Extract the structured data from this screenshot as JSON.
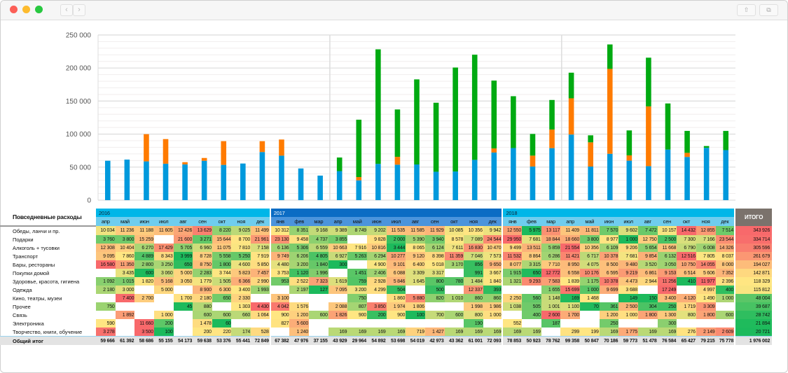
{
  "window": {
    "controls": [
      "close",
      "minimize",
      "zoom"
    ],
    "nav": {
      "back_icon": "chevron-left-icon",
      "forward_icon": "chevron-right-icon",
      "back": "‹",
      "forward": "›"
    },
    "toolbar": {
      "share_icon": "share-icon",
      "tabs_icon": "tabs-icon",
      "share": "⇧",
      "tabs": "⧉"
    }
  },
  "colors": {
    "blue": "#0099dc",
    "orange": "#ff7b00",
    "green": "#00aa11",
    "year_light": "#00b6e8",
    "month_light": "#6fcdee",
    "year_dark": "#0b6cc4",
    "month_dark": "#4b94dc",
    "heat_low": "#1cba5c",
    "heat_mid": "#ffe682",
    "heat_high": "#f8696b"
  },
  "chart_data": {
    "type": "bar",
    "stacked": true,
    "title": "",
    "xlabel": "",
    "ylabel": "",
    "ylim": [
      0,
      250000
    ],
    "yticks": [
      "0",
      "50 000",
      "100 000",
      "150 000",
      "200 000",
      "250 000"
    ],
    "ytick_values": [
      0,
      50000,
      100000,
      150000,
      200000,
      250000
    ],
    "grid": true,
    "categories": [
      "апр 2016",
      "май 2016",
      "июн 2016",
      "июл 2016",
      "авг 2016",
      "сен 2016",
      "окт 2016",
      "ноя 2016",
      "дек 2016",
      "янв 2017",
      "фев 2017",
      "мар 2017",
      "апр 2017",
      "май 2017",
      "июн 2017",
      "июл 2017",
      "авг 2017",
      "сен 2017",
      "окт 2017",
      "ноя 2017",
      "дек 2017",
      "янв 2018",
      "фев 2018",
      "мар 2018",
      "апр 2018",
      "май 2018",
      "июн 2018",
      "июл 2018",
      "авг 2018",
      "сен 2018",
      "окт 2018",
      "ноя 2018",
      "дек 2018"
    ],
    "series": [
      {
        "name": "blue",
        "values": [
          59666,
          61392,
          58686,
          55155,
          54173,
          59638,
          53376,
          55441,
          72849,
          67382,
          47976,
          37155,
          43929,
          29964,
          54892,
          53698,
          54019,
          42973,
          43362,
          61001,
          72093,
          78853,
          50923,
          78762,
          99358,
          50847,
          70186,
          59773,
          51478,
          76584,
          65427,
          79215,
          75778
        ]
      },
      {
        "name": "orange",
        "values": [
          0,
          0,
          41200,
          37300,
          3300,
          4200,
          35900,
          0,
          16400,
          24400,
          0,
          0,
          0,
          5000,
          0,
          11900,
          0,
          0,
          0,
          0,
          6200,
          0,
          16500,
          28100,
          54800,
          36700,
          128500,
          8000,
          90400,
          0,
          6200,
          0,
          0
        ]
      },
      {
        "name": "green",
        "values": [
          0,
          0,
          0,
          0,
          0,
          0,
          0,
          0,
          0,
          0,
          0,
          0,
          20600,
          86800,
          173400,
          71700,
          128800,
          104500,
          157400,
          159200,
          102700,
          78500,
          32800,
          44800,
          38800,
          10600,
          37000,
          37800,
          73800,
          69800,
          33200,
          2700,
          29000
        ]
      }
    ]
  },
  "table": {
    "title": "Повседневные расходы",
    "total_header": "ИТОГО",
    "years": [
      {
        "label": "2016",
        "span": 9,
        "dark": false
      },
      {
        "label": "2017",
        "span": 12,
        "dark": true
      },
      {
        "label": "2018",
        "span": 12,
        "dark": false
      }
    ],
    "months": [
      "апр",
      "май",
      "июн",
      "июл",
      "авг",
      "сен",
      "окт",
      "ноя",
      "дек",
      "янв",
      "фев",
      "мар",
      "апр",
      "май",
      "июн",
      "июл",
      "авг",
      "сен",
      "окт",
      "ноя",
      "дек",
      "янв",
      "фев",
      "мар",
      "апр",
      "май",
      "июн",
      "июл",
      "авг",
      "сен",
      "окт",
      "ноя",
      "дек"
    ],
    "rows": [
      {
        "label": "Обеды, ланчи и пр.",
        "total": 343926,
        "values": [
          10034,
          11236,
          11188,
          11605,
          12426,
          13629,
          8220,
          9025,
          11499,
          10312,
          8351,
          9168,
          9389,
          8749,
          9202,
          11535,
          11585,
          11929,
          10085,
          10356,
          9942,
          12550,
          5975,
          13117,
          11409,
          11811,
          7570,
          9602,
          7472,
          10157,
          14432,
          12855,
          7514
        ]
      },
      {
        "label": "Подарки",
        "total": 334714,
        "values": [
          3760,
          3800,
          15259,
          null,
          21600,
          3271,
          15644,
          8700,
          21961,
          23130,
          9458,
          4737,
          3855,
          null,
          9828,
          2000,
          5390,
          3940,
          8578,
          7089,
          24544,
          29950,
          7681,
          18844,
          18660,
          3800,
          8977,
          1000,
          12750,
          2500,
          7300,
          7166,
          23544
        ]
      },
      {
        "label": "Алкоголь + тусовки",
        "total": 305596,
        "values": [
          12308,
          10404,
          6270,
          17429,
          5705,
          6960,
          11075,
          7810,
          7158,
          6136,
          5306,
          6559,
          10663,
          7916,
          10816,
          3444,
          8065,
          6124,
          7611,
          16830,
          10470,
          9499,
          13511,
          5859,
          21554,
          10356,
          6109,
          9206,
          5654,
          11668,
          6790,
          6008,
          14326
        ]
      },
      {
        "label": "Транспорт",
        "total": 261679,
        "values": [
          9095,
          7860,
          4889,
          8343,
          3999,
          8728,
          5558,
          5250,
          7919,
          9749,
          6206,
          4805,
          6927,
          5263,
          6294,
          10277,
          9120,
          8398,
          11359,
          7046,
          7573,
          11532,
          8864,
          6286,
          11421,
          6717,
          10378,
          7681,
          9854,
          6132,
          12516,
          7805,
          8037
        ]
      },
      {
        "label": "Бары, рестораны",
        "total": 194027,
        "values": [
          16580,
          11350,
          2800,
          3250,
          650,
          8750,
          1800,
          4600,
          5850,
          4480,
          3200,
          1840,
          300,
          null,
          4900,
          9101,
          6400,
          5018,
          3170,
          856,
          9650,
          8077,
          3315,
          7710,
          8950,
          4075,
          8500,
          9480,
          3520,
          3050,
          10750,
          14055,
          8000
        ]
      },
      {
        "label": "Покупки домой",
        "total": 142871,
        "values": [
          null,
          3435,
          600,
          3060,
          5000,
          2283,
          3744,
          5823,
          7457,
          3753,
          1120,
          1996,
          null,
          1451,
          2406,
          6088,
          3309,
          3317,
          null,
          991,
          3667,
          1915,
          650,
          12772,
          6558,
          10176,
          6595,
          9219,
          6861,
          9153,
          6514,
          5606,
          7352
        ]
      },
      {
        "label": "Здоровье, красота, гигиена",
        "total": 118329,
        "values": [
          1092,
          1015,
          1820,
          5168,
          3050,
          1779,
          1505,
          6366,
          2990,
          953,
          2522,
          7323,
          1619,
          759,
          2928,
          5846,
          1645,
          800,
          780,
          1484,
          1840,
          1321,
          9293,
          7583,
          1839,
          1175,
          10378,
          4473,
          2944,
          11256,
          410,
          11977,
          2396
        ]
      },
      {
        "label": "Одежда",
        "total": 115812,
        "values": [
          2180,
          3000,
          null,
          5000,
          null,
          8900,
          6300,
          3400,
          1993,
          null,
          2197,
          127,
          7095,
          3200,
          4299,
          504,
          null,
          500,
          null,
          12337,
          393,
          null,
          null,
          1655,
          15699,
          1000,
          9699,
          3688,
          null,
          17249,
          null,
          4997,
          400
        ]
      },
      {
        "label": "Кино, театры, музеи",
        "total": 48004,
        "values": [
          null,
          7400,
          2700,
          null,
          1700,
          2180,
          650,
          2330,
          null,
          3100,
          null,
          null,
          null,
          750,
          null,
          1860,
          5880,
          820,
          1010,
          860,
          860,
          2250,
          560,
          1148,
          169,
          1468,
          null,
          149,
          150,
          3400,
          4120,
          1490,
          1000
        ]
      },
      {
        "label": "Прочее",
        "total": 39687,
        "values": [
          750,
          null,
          null,
          null,
          45,
          880,
          null,
          1303,
          4430,
          4042,
          1576,
          null,
          2088,
          807,
          3850,
          1974,
          1806,
          null,
          null,
          1998,
          1986,
          1038,
          505,
          1001,
          1100,
          70,
          361,
          2500,
          304,
          250,
          1719,
          3309,
          null
        ]
      },
      {
        "label": "Связь",
        "total": 28742,
        "values": [
          null,
          1892,
          null,
          1000,
          null,
          600,
          600,
          660,
          1064,
          900,
          1200,
          600,
          1826,
          900,
          200,
          900,
          100,
          700,
          600,
          800,
          1000,
          null,
          400,
          2600,
          1700,
          null,
          1200,
          1000,
          1800,
          1300,
          800,
          1800,
          600
        ]
      },
      {
        "label": "Электроника",
        "total": 21894,
        "values": [
          590,
          null,
          11660,
          200,
          null,
          1478,
          60,
          null,
          null,
          827,
          5600,
          null,
          null,
          null,
          null,
          null,
          null,
          null,
          null,
          190,
          null,
          552,
          null,
          187,
          null,
          null,
          250,
          null,
          null,
          300,
          null,
          null,
          null
        ]
      },
      {
        "label": "Творчество, книги, обучение",
        "total": 20721,
        "values": [
          3278,
          null,
          3500,
          100,
          null,
          200,
          220,
          174,
          528,
          null,
          1240,
          null,
          169,
          169,
          169,
          169,
          719,
          1427,
          169,
          169,
          169,
          169,
          169,
          null,
          299,
          199,
          169,
          1775,
          169,
          169,
          276,
          2149,
          2609
        ]
      }
    ],
    "grand_total": {
      "label": "Общий итог",
      "total": 1976002,
      "values": [
        59666,
        61392,
        58686,
        55155,
        54173,
        59638,
        53376,
        55441,
        72849,
        67382,
        47976,
        37155,
        43929,
        29964,
        54892,
        53698,
        54019,
        42973,
        43362,
        61001,
        72093,
        78853,
        50923,
        78762,
        99358,
        50847,
        70186,
        59773,
        51478,
        76584,
        65427,
        79215,
        75778
      ]
    }
  }
}
